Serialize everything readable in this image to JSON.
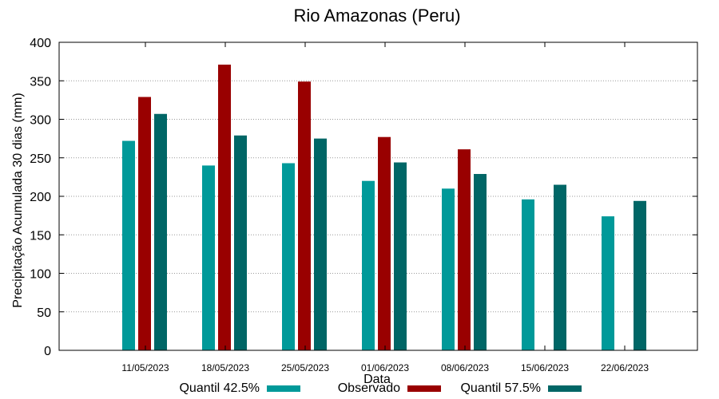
{
  "chart_data": {
    "type": "bar",
    "title": "Rio Amazonas (Peru)",
    "xlabel": "Data",
    "ylabel": "Precipitação Acumulada 30 dias (mm)",
    "ylim": [
      0,
      400
    ],
    "yticks": [
      0,
      50,
      100,
      150,
      200,
      250,
      300,
      350,
      400
    ],
    "grid": true,
    "categories": [
      "11/05/2023",
      "18/05/2023",
      "25/05/2023",
      "01/06/2023",
      "08/06/2023",
      "15/06/2023",
      "22/06/2023"
    ],
    "series": [
      {
        "name": "Quantil 42.5%",
        "color": "#009999",
        "values": [
          272,
          240,
          243,
          220,
          210,
          196,
          174
        ]
      },
      {
        "name": "Observado",
        "color": "#990000",
        "values": [
          329,
          371,
          349,
          277,
          261,
          null,
          null
        ]
      },
      {
        "name": "Quantil 57.5%",
        "color": "#006666",
        "values": [
          307,
          279,
          275,
          244,
          229,
          215,
          194
        ]
      }
    ]
  }
}
